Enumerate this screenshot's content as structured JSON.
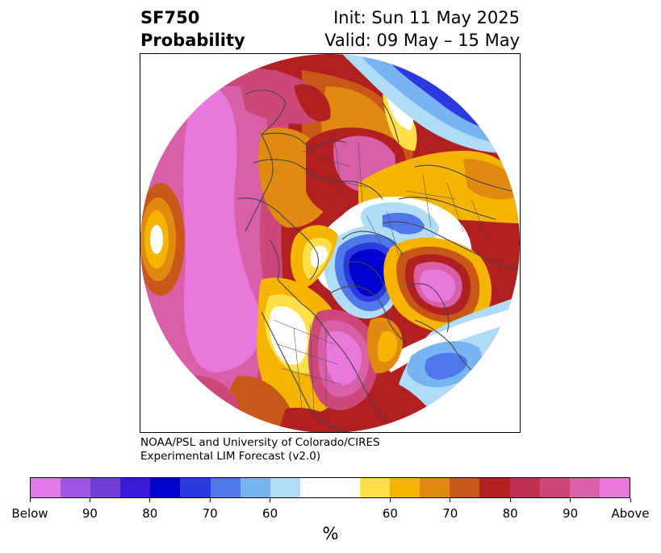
{
  "title": {
    "left_line1": "SF750",
    "left_line2": "Probability",
    "right_line1": "Init: Sun 11 May 2025",
    "right_line2": "Valid: 09 May – 15 May"
  },
  "credit": {
    "line1": "NOAA/PSL and University of Colorado/CIRES",
    "line2": "Experimental LIM Forecast (v2.0)"
  },
  "colorbar": {
    "colors": [
      "#e07ae6",
      "#a055e0",
      "#7040d8",
      "#3a1ad8",
      "#0000cc",
      "#2a3ae0",
      "#4e78ea",
      "#78b4f2",
      "#b0dcf8",
      "#ffffff",
      "#ffffff",
      "#ffe04a",
      "#f4b400",
      "#e08a10",
      "#c85818",
      "#b02020",
      "#c03050",
      "#cc4878",
      "#d860a8",
      "#e878dc"
    ],
    "tick_labels": [
      "Below",
      "90",
      "80",
      "70",
      "60",
      "60",
      "70",
      "80",
      "90",
      "Above"
    ],
    "units": "%"
  },
  "map": {
    "projection": "north-polar-stereographic",
    "palette": {
      "above_max": "#e878dc",
      "above_90": "#d860a8",
      "above_85": "#cc4878",
      "above_80": "#b02020",
      "above_75": "#c85818",
      "above_70": "#e08a10",
      "above_65": "#f4b400",
      "above_60": "#ffe04a",
      "below_60": "#b0dcf8",
      "below_65": "#78b4f2",
      "below_70": "#4e78ea",
      "below_75": "#2a3ae0",
      "below_80": "#0000cc",
      "below_85": "#3a1ad8",
      "below_90": "#7040d8",
      "below_max": "#a055e0",
      "neutral": "#ffffff",
      "coast": "#444444"
    }
  }
}
